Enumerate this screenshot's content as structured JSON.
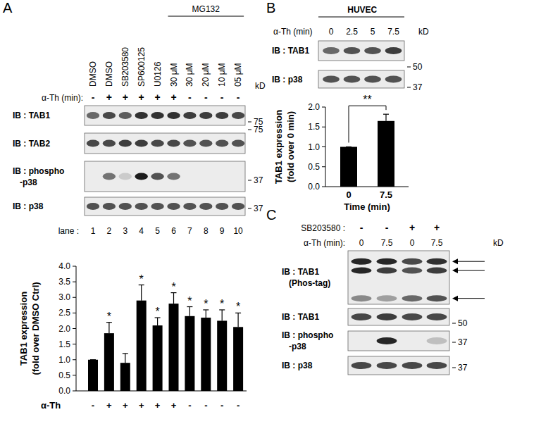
{
  "chart_data": [
    {
      "type": "bar",
      "y_label": [
        "TAB1 expression",
        "(fold over DMSO Ctrl)"
      ],
      "x_label": "α-Th",
      "categories": [
        "-",
        "+",
        "+",
        "+",
        "+",
        "+",
        "-",
        "-",
        "-",
        "-"
      ],
      "values": [
        1.0,
        1.85,
        0.9,
        2.9,
        2.1,
        2.8,
        2.4,
        2.35,
        2.25,
        2.05
      ],
      "errors": [
        0,
        0.35,
        0.3,
        0.5,
        0.25,
        0.35,
        0.3,
        0.25,
        0.35,
        0.45
      ],
      "significance": [
        null,
        "*",
        null,
        "*",
        "*",
        "*",
        "*",
        "*",
        "*",
        "*"
      ],
      "color": "#000000",
      "ylim": [
        0,
        4
      ],
      "yticks": [
        {
          "value": 0,
          "label": "0.0"
        },
        {
          "value": 0.5,
          "label": "0.5"
        },
        {
          "value": 1,
          "label": "1.0"
        },
        {
          "value": 1.5,
          "label": "1.5"
        },
        {
          "value": 2,
          "label": "2.0"
        },
        {
          "value": 2.5,
          "label": "2.5"
        },
        {
          "value": 3,
          "label": "3.0"
        },
        {
          "value": 3.5,
          "label": "3.5"
        },
        {
          "value": 4,
          "label": "4.0"
        }
      ]
    },
    {
      "type": "bar",
      "y_label": [
        "TAB1 expression",
        "(fold over 0 min)"
      ],
      "x_label": "Time (min)",
      "categories": [
        "0",
        "7.5"
      ],
      "values": [
        1.0,
        1.65
      ],
      "errors": [
        0,
        0.17
      ],
      "annotation": "**",
      "color": "#000000",
      "ylim": [
        0,
        2
      ],
      "yticks": [
        {
          "value": 0,
          "label": "0.0"
        },
        {
          "value": 0.5,
          "label": "0.5"
        },
        {
          "value": 1,
          "label": "1.0"
        },
        {
          "value": 1.5,
          "label": "1.5"
        },
        {
          "value": 2,
          "label": "2.0"
        }
      ]
    }
  ],
  "figure": {
    "A": {
      "letter": "A",
      "group": "MG132",
      "treatments": [
        "DMSO",
        "DMSO",
        "SB203580",
        "SP600125",
        "U0126",
        "30 μM",
        "30 μM",
        "20 μM",
        "10 μM",
        "05 μM"
      ],
      "row_label": "α-Th (min):",
      "alpha_th": [
        "-",
        "+",
        "+",
        "+",
        "+",
        "+",
        "-",
        "-",
        "-",
        "-"
      ],
      "kd": "kD",
      "blots": [
        {
          "label": [
            "IB : TAB1"
          ],
          "marker": 75,
          "bands": [
            0.6,
            0.75,
            0.65,
            0.85,
            0.85,
            0.85,
            0.8,
            0.8,
            0.8,
            0.75
          ]
        },
        {
          "label": [
            "IB : TAB2"
          ],
          "marker": 75,
          "bands": [
            0.75,
            0.75,
            0.8,
            0.8,
            0.75,
            0.75,
            0.7,
            0.7,
            0.7,
            0.7
          ]
        },
        {
          "label": [
            "IB : phospho",
            "-p38"
          ],
          "marker": 37,
          "bands": [
            0,
            0.55,
            0.15,
            0.95,
            0.7,
            0.55,
            0,
            0,
            0,
            0
          ]
        },
        {
          "label": [
            "IB : p38"
          ],
          "marker": 37,
          "bands": [
            0.7,
            0.7,
            0.7,
            0.7,
            0.7,
            0.7,
            0.7,
            0.7,
            0.7,
            0.7
          ]
        }
      ],
      "lane_label": "lane :",
      "lanes": [
        "1",
        "2",
        "3",
        "4",
        "5",
        "6",
        "7",
        "8",
        "9",
        "10"
      ]
    },
    "B": {
      "letter": "B",
      "group": "HUVEC",
      "row_label": "α-Th (min)",
      "times": [
        "0",
        "2.5",
        "5",
        "7.5"
      ],
      "kd": "kD",
      "blots": [
        {
          "label": [
            "IB : TAB1"
          ],
          "marker": 50,
          "bands": [
            0.6,
            0.7,
            0.7,
            0.8
          ]
        },
        {
          "label": [
            "IB : p38"
          ],
          "marker": 37,
          "bands": [
            0.7,
            0.7,
            0.7,
            0.7
          ]
        }
      ]
    },
    "C": {
      "letter": "C",
      "rows": [
        {
          "label": "SB203580 :",
          "values": [
            "-",
            "-",
            "+",
            "+"
          ]
        },
        {
          "label": "α-Th (min):",
          "values": [
            "0",
            "7.5",
            "0",
            "7.5"
          ]
        }
      ],
      "kd": "kD",
      "blots": [
        {
          "label": [
            "IB : TAB1",
            "(Phos-tag)"
          ],
          "marker": null,
          "bands": [
            [
              0.9,
              0.9,
              0.45
            ],
            [
              0.9,
              0.8,
              0.35
            ],
            [
              0.75,
              0.7,
              0.6
            ],
            [
              0.85,
              0.8,
              0.7
            ]
          ]
        },
        {
          "label": [
            "IB : TAB1"
          ],
          "marker": 50,
          "bands": [
            0.75,
            0.8,
            0.75,
            0.75
          ]
        },
        {
          "label": [
            "IB : phospho",
            "-p38"
          ],
          "marker": 37,
          "bands": [
            0,
            0.9,
            0,
            0.2
          ]
        },
        {
          "label": [
            "IB : p38"
          ],
          "marker": 37,
          "bands": [
            0.75,
            0.75,
            0.75,
            0.75
          ]
        }
      ]
    }
  }
}
